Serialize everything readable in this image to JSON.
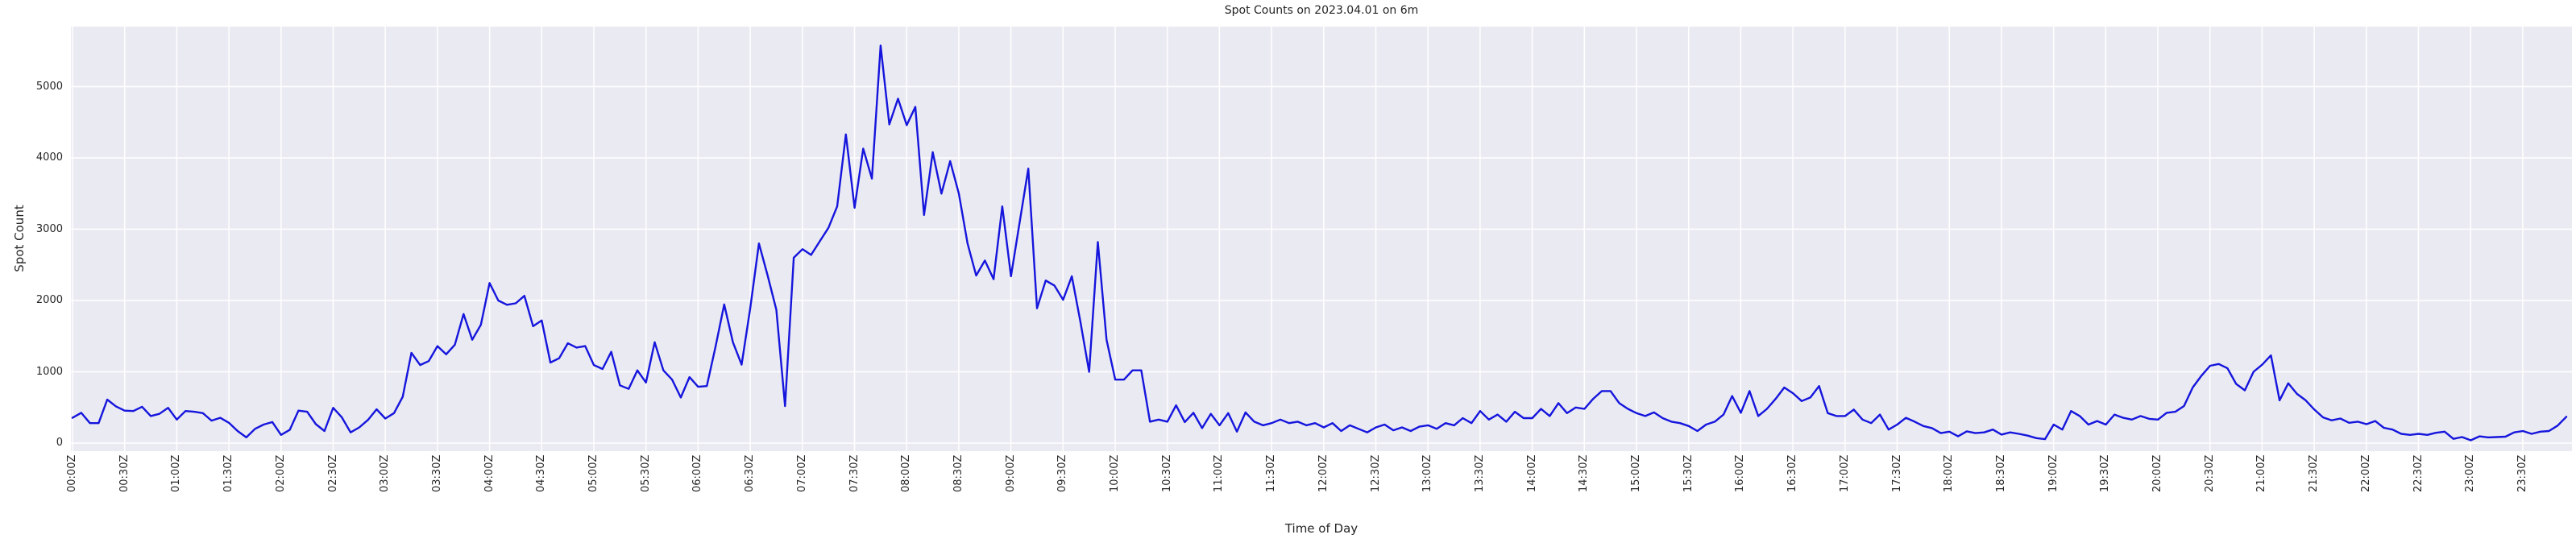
{
  "title": "Spot Counts on 2023.04.01 on 6m",
  "chart_data": {
    "type": "line",
    "title": "Spot Counts on 2023.04.01 on 6m",
    "xlabel": "Time of Day",
    "ylabel": "Spot Count",
    "legend": "none",
    "grid": "on",
    "background_color": "#eaeaf2",
    "grid_color": "#ffffff",
    "line_color": "#1515dd",
    "ylim": [
      -150,
      5850
    ],
    "yticks": [
      0,
      1000,
      2000,
      3000,
      4000,
      5000
    ],
    "x_start": "00:00Z",
    "x_interval_minutes": 5,
    "xtick_interval_minutes": 30,
    "xtick_labels": [
      "00:00Z",
      "00:30Z",
      "01:00Z",
      "01:30Z",
      "02:00Z",
      "02:30Z",
      "03:00Z",
      "03:30Z",
      "04:00Z",
      "04:30Z",
      "05:00Z",
      "05:30Z",
      "06:00Z",
      "06:30Z",
      "07:00Z",
      "07:30Z",
      "08:00Z",
      "08:30Z",
      "09:00Z",
      "09:30Z",
      "10:00Z",
      "10:30Z",
      "11:00Z",
      "11:30Z",
      "12:00Z",
      "12:30Z",
      "13:00Z",
      "13:30Z",
      "14:00Z",
      "14:30Z",
      "15:00Z",
      "15:30Z",
      "16:00Z",
      "16:30Z",
      "17:00Z",
      "17:30Z",
      "18:00Z",
      "18:30Z",
      "19:00Z",
      "19:30Z",
      "20:00Z",
      "20:30Z",
      "21:00Z",
      "21:30Z",
      "22:00Z",
      "22:30Z",
      "23:00Z",
      "23:30Z"
    ],
    "values": [
      355,
      425,
      280,
      280,
      610,
      515,
      455,
      450,
      510,
      380,
      410,
      495,
      330,
      450,
      440,
      420,
      315,
      355,
      285,
      170,
      80,
      200,
      260,
      295,
      115,
      185,
      455,
      440,
      265,
      170,
      495,
      360,
      150,
      220,
      325,
      475,
      345,
      420,
      650,
      1265,
      1095,
      1150,
      1360,
      1245,
      1380,
      1810,
      1450,
      1660,
      2245,
      2000,
      1940,
      1960,
      2065,
      1640,
      1720,
      1130,
      1190,
      1400,
      1340,
      1360,
      1095,
      1040,
      1280,
      810,
      760,
      1020,
      850,
      1415,
      1020,
      890,
      640,
      925,
      790,
      800,
      1350,
      1945,
      1415,
      1100,
      1900,
      2800,
      2350,
      1870,
      520,
      2600,
      2720,
      2640,
      2830,
      3020,
      3320,
      4330,
      3300,
      4130,
      3710,
      5575,
      4470,
      4830,
      4460,
      4715,
      3200,
      4080,
      3500,
      3955,
      3500,
      2800,
      2350,
      2560,
      2300,
      3320,
      2340,
      3100,
      3850,
      1890,
      2280,
      2210,
      2010,
      2340,
      1700,
      1000,
      2820,
      1450,
      890,
      890,
      1020,
      1020,
      300,
      330,
      300,
      530,
      295,
      425,
      210,
      410,
      250,
      420,
      160,
      430,
      300,
      250,
      280,
      330,
      280,
      300,
      250,
      280,
      220,
      280,
      170,
      250,
      200,
      150,
      220,
      260,
      180,
      220,
      170,
      230,
      250,
      200,
      280,
      250,
      350,
      280,
      450,
      330,
      400,
      300,
      440,
      350,
      350,
      480,
      380,
      560,
      420,
      500,
      480,
      620,
      730,
      730,
      560,
      480,
      420,
      380,
      430,
      350,
      300,
      280,
      240,
      170,
      260,
      300,
      400,
      660,
      425,
      730,
      380,
      480,
      620,
      780,
      700,
      590,
      640,
      800,
      420,
      380,
      380,
      470,
      330,
      280,
      400,
      190,
      260,
      355,
      300,
      240,
      210,
      140,
      160,
      95,
      165,
      140,
      150,
      190,
      120,
      150,
      130,
      105,
      70,
      55,
      260,
      190,
      450,
      380,
      260,
      310,
      260,
      400,
      355,
      330,
      380,
      340,
      330,
      425,
      440,
      520,
      780,
      945,
      1085,
      1110,
      1050,
      830,
      740,
      1000,
      1100,
      1230,
      600,
      840,
      690,
      600,
      470,
      360,
      320,
      345,
      285,
      300,
      265,
      310,
      215,
      190,
      130,
      115,
      130,
      115,
      145,
      160,
      60,
      85,
      40,
      95,
      80,
      85,
      90,
      150,
      170,
      130,
      160,
      170,
      245,
      370
    ]
  }
}
